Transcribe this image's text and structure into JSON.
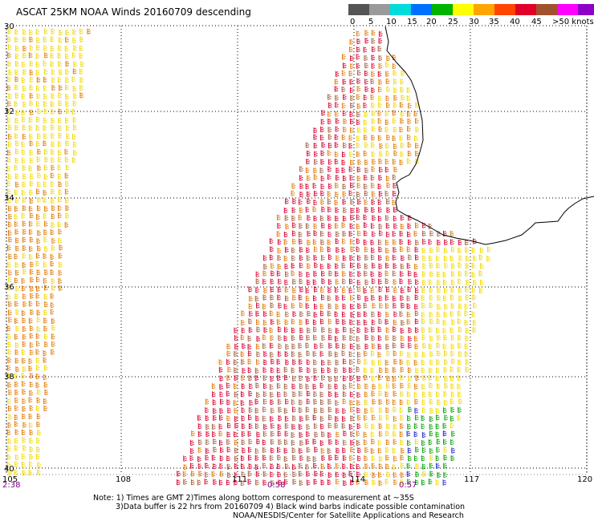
{
  "title": "ASCAT 25KM NOAA Winds 20160709 descending",
  "legend": {
    "labels": [
      "0",
      "5",
      "10",
      "15",
      "20",
      "25",
      "30",
      "35",
      "40",
      "45",
      ">50 knots"
    ],
    "colors": [
      "#555555",
      "#9a9a9a",
      "#00dcdc",
      "#0070ff",
      "#00b400",
      "#ffff00",
      "#ffa500",
      "#ff4500",
      "#e10028",
      "#a0522d",
      "#ff00ff",
      "#8c00c8"
    ]
  },
  "axes": {
    "lat_labels": [
      "30",
      "32",
      "34",
      "36",
      "38",
      "40"
    ],
    "lon_labels": [
      "105",
      "108",
      "111",
      "114",
      "117",
      "120"
    ]
  },
  "times": [
    "2:38",
    "0:58",
    "0:57"
  ],
  "notes": {
    "line1": "Note: 1) Times are GMT 2)Times along bottom correspond to measurement at ~35S",
    "line2": "3)Data buffer is 22 hrs from 20160709 4) Black wind barbs indicate possible contamination",
    "line3": "NOAA/NESDIS/Center for Satellite Applications and Research"
  },
  "colors": {
    "grid": "#000000",
    "coast": "#000000",
    "time_label": "#800080",
    "barb_yellow": "#f0d800",
    "barb_orange": "#e07800",
    "barb_red": "#d80030",
    "barb_brown": "#a05a3c",
    "barb_green": "#00a000",
    "barb_blue": "#2020d0"
  }
}
